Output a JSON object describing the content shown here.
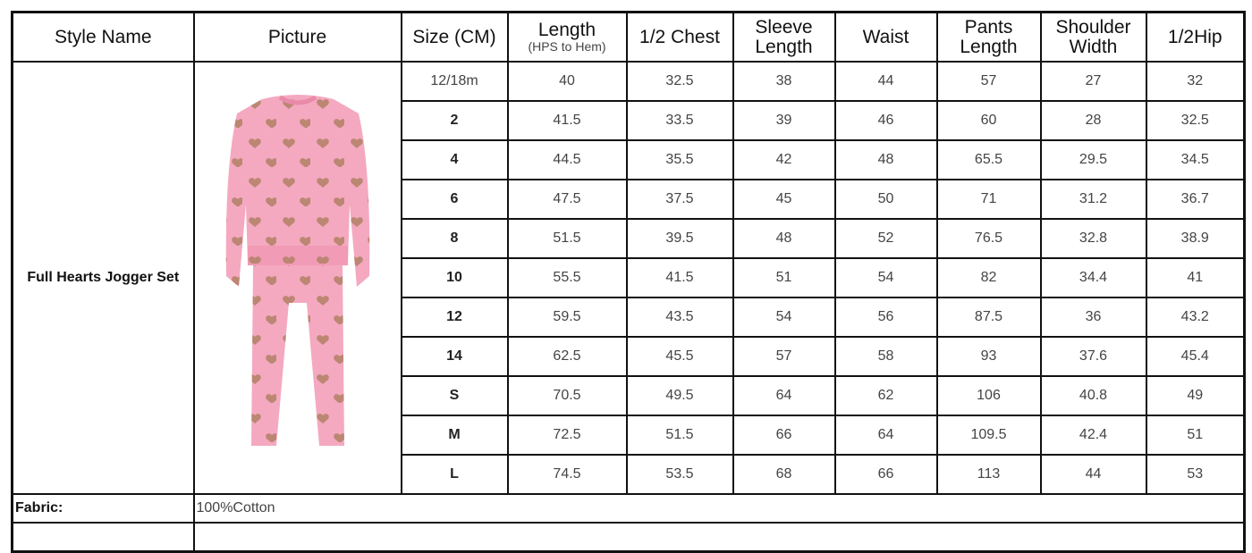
{
  "headers": [
    {
      "label": "Style Name"
    },
    {
      "label": "Picture"
    },
    {
      "label": "Size (CM)"
    },
    {
      "label": "Length",
      "sub": "(HPS to Hem)"
    },
    {
      "label": "1/2 Chest"
    },
    {
      "label": "Sleeve Length"
    },
    {
      "label": "Waist"
    },
    {
      "label": "Pants Length"
    },
    {
      "label": "Shoulder Width"
    },
    {
      "label": "1/2Hip"
    }
  ],
  "style_name": "Full Hearts Jogger Set",
  "picture": {
    "icon": "pink-heart-jogger-set-image",
    "color": "#f4a9c0"
  },
  "rows": [
    [
      "12/18m",
      "40",
      "32.5",
      "38",
      "44",
      "57",
      "27",
      "32"
    ],
    [
      "2",
      "41.5",
      "33.5",
      "39",
      "46",
      "60",
      "28",
      "32.5"
    ],
    [
      "4",
      "44.5",
      "35.5",
      "42",
      "48",
      "65.5",
      "29.5",
      "34.5"
    ],
    [
      "6",
      "47.5",
      "37.5",
      "45",
      "50",
      "71",
      "31.2",
      "36.7"
    ],
    [
      "8",
      "51.5",
      "39.5",
      "48",
      "52",
      "76.5",
      "32.8",
      "38.9"
    ],
    [
      "10",
      "55.5",
      "41.5",
      "51",
      "54",
      "82",
      "34.4",
      "41"
    ],
    [
      "12",
      "59.5",
      "43.5",
      "54",
      "56",
      "87.5",
      "36",
      "43.2"
    ],
    [
      "14",
      "62.5",
      "45.5",
      "57",
      "58",
      "93",
      "37.6",
      "45.4"
    ],
    [
      "S",
      "70.5",
      "49.5",
      "64",
      "62",
      "106",
      "40.8",
      "49"
    ],
    [
      "M",
      "72.5",
      "51.5",
      "66",
      "64",
      "109.5",
      "42.4",
      "51"
    ],
    [
      "L",
      "74.5",
      "53.5",
      "68",
      "66",
      "113",
      "44",
      "53"
    ]
  ],
  "fabric": {
    "label": "Fabric:",
    "value": "100%Cotton"
  }
}
